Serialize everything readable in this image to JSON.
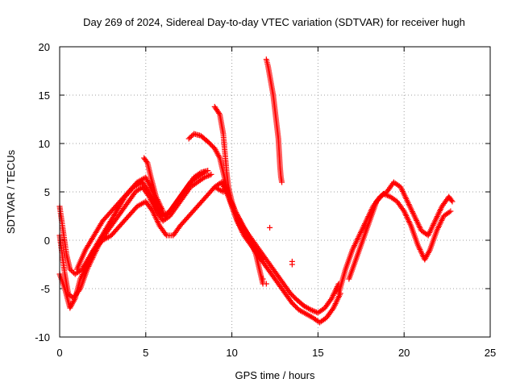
{
  "chart_data": {
    "type": "scatter",
    "title": "Day 269 of 2024, Sidereal Day-to-day VTEC variation (SDTVAR) for receiver hugh",
    "xlabel": "GPS time / hours",
    "ylabel": "SDTVAR / TECUs",
    "xlim": [
      0,
      25
    ],
    "ylim": [
      -10,
      20
    ],
    "xticks": [
      "0",
      "5",
      "10",
      "15",
      "20",
      "25"
    ],
    "yticks": [
      "-10",
      "-5",
      "0",
      "5",
      "10",
      "15",
      "20"
    ],
    "grid": true,
    "marker": "+",
    "color": "#ff0000",
    "series": [
      {
        "name": "track-1",
        "points": [
          [
            0.0,
            3.5
          ],
          [
            0.2,
            1.0
          ],
          [
            0.4,
            -1.5
          ],
          [
            0.6,
            -3.0
          ],
          [
            0.9,
            -3.5
          ],
          [
            1.3,
            -3.0
          ],
          [
            1.8,
            -1.5
          ],
          [
            2.3,
            0.0
          ],
          [
            2.8,
            1.5
          ],
          [
            3.3,
            3.0
          ],
          [
            3.8,
            4.5
          ],
          [
            4.3,
            5.5
          ],
          [
            4.8,
            6.0
          ],
          [
            5.2,
            5.0
          ],
          [
            5.6,
            3.5
          ],
          [
            6.0,
            2.5
          ],
          [
            6.4,
            3.0
          ],
          [
            6.8,
            4.0
          ],
          [
            7.2,
            5.0
          ],
          [
            7.6,
            6.0
          ],
          [
            8.0,
            6.5
          ],
          [
            8.4,
            7.0
          ]
        ]
      },
      {
        "name": "track-2",
        "points": [
          [
            0.0,
            0.5
          ],
          [
            0.3,
            -3.5
          ],
          [
            0.5,
            -5.5
          ],
          [
            0.8,
            -6.0
          ],
          [
            1.2,
            -5.0
          ],
          [
            1.6,
            -3.0
          ],
          [
            2.0,
            -1.5
          ],
          [
            2.4,
            0.0
          ],
          [
            2.8,
            1.0
          ],
          [
            3.2,
            2.0
          ],
          [
            3.6,
            3.0
          ],
          [
            4.0,
            4.0
          ],
          [
            4.4,
            5.0
          ],
          [
            4.8,
            5.5
          ],
          [
            5.2,
            4.5
          ],
          [
            5.6,
            3.0
          ],
          [
            6.0,
            2.0
          ],
          [
            6.4,
            2.5
          ],
          [
            6.8,
            3.5
          ],
          [
            7.2,
            4.5
          ],
          [
            7.6,
            5.5
          ],
          [
            8.0,
            6.0
          ],
          [
            8.4,
            6.5
          ],
          [
            8.8,
            6.8
          ]
        ]
      },
      {
        "name": "track-3",
        "points": [
          [
            0.0,
            -3.5
          ],
          [
            0.3,
            -5.0
          ],
          [
            0.6,
            -7.0
          ],
          [
            0.9,
            -6.0
          ],
          [
            1.2,
            -4.0
          ],
          [
            1.6,
            -2.5
          ],
          [
            2.0,
            -1.0
          ],
          [
            2.5,
            0.0
          ],
          [
            3.0,
            0.5
          ],
          [
            3.5,
            1.5
          ],
          [
            4.0,
            2.5
          ],
          [
            4.5,
            3.5
          ],
          [
            5.0,
            4.0
          ],
          [
            5.4,
            3.0
          ],
          [
            5.8,
            1.5
          ],
          [
            6.2,
            0.5
          ],
          [
            6.6,
            0.5
          ],
          [
            7.0,
            1.5
          ],
          [
            7.5,
            2.5
          ],
          [
            8.0,
            3.5
          ],
          [
            8.5,
            4.5
          ],
          [
            9.0,
            5.5
          ],
          [
            9.5,
            5.0
          ]
        ]
      },
      {
        "name": "track-4",
        "points": [
          [
            1.0,
            -3.0
          ],
          [
            1.5,
            -1.0
          ],
          [
            2.0,
            0.5
          ],
          [
            2.5,
            2.0
          ],
          [
            3.0,
            3.0
          ],
          [
            3.5,
            4.0
          ],
          [
            4.0,
            5.0
          ],
          [
            4.5,
            6.0
          ],
          [
            5.0,
            6.5
          ],
          [
            5.4,
            5.0
          ],
          [
            5.8,
            3.0
          ],
          [
            6.2,
            2.5
          ],
          [
            6.6,
            3.5
          ],
          [
            7.0,
            4.5
          ],
          [
            7.4,
            5.5
          ],
          [
            7.8,
            6.5
          ],
          [
            8.2,
            7.0
          ],
          [
            8.6,
            7.2
          ]
        ]
      },
      {
        "name": "track-5",
        "points": [
          [
            4.9,
            8.5
          ],
          [
            5.1,
            8.0
          ],
          [
            5.3,
            6.5
          ],
          [
            5.6,
            4.5
          ],
          [
            6.0,
            3.0
          ]
        ]
      },
      {
        "name": "track-6",
        "points": [
          [
            7.5,
            10.5
          ],
          [
            7.8,
            11.0
          ],
          [
            8.2,
            10.8
          ],
          [
            8.6,
            10.2
          ],
          [
            9.0,
            9.5
          ],
          [
            9.3,
            8.5
          ],
          [
            9.5,
            7.0
          ],
          [
            9.7,
            5.5
          ],
          [
            9.9,
            4.0
          ],
          [
            10.2,
            2.5
          ],
          [
            10.6,
            1.0
          ],
          [
            11.0,
            0.0
          ],
          [
            11.4,
            -1.0
          ],
          [
            11.8,
            -2.0
          ]
        ]
      },
      {
        "name": "track-7",
        "points": [
          [
            9.0,
            13.8
          ],
          [
            9.3,
            13.0
          ],
          [
            9.5,
            11.0
          ],
          [
            9.6,
            9.0
          ],
          [
            9.7,
            7.0
          ],
          [
            9.8,
            5.5
          ],
          [
            10.0,
            4.0
          ],
          [
            10.2,
            3.0
          ],
          [
            10.5,
            2.0
          ],
          [
            10.8,
            1.0
          ],
          [
            11.1,
            0.0
          ],
          [
            11.4,
            -1.5
          ],
          [
            11.6,
            -3.0
          ],
          [
            11.8,
            -4.5
          ]
        ]
      },
      {
        "name": "track-8",
        "points": [
          [
            9.0,
            5.5
          ],
          [
            9.4,
            6.0
          ],
          [
            9.8,
            4.5
          ],
          [
            10.2,
            3.0
          ],
          [
            10.6,
            1.5
          ],
          [
            11.0,
            0.5
          ],
          [
            11.4,
            -0.5
          ],
          [
            11.8,
            -1.5
          ],
          [
            12.2,
            -2.5
          ],
          [
            12.6,
            -3.5
          ],
          [
            13.0,
            -4.5
          ],
          [
            13.4,
            -5.5
          ],
          [
            13.8,
            -6.2
          ],
          [
            14.2,
            -6.8
          ],
          [
            14.6,
            -7.2
          ],
          [
            15.0,
            -7.5
          ],
          [
            15.4,
            -7.0
          ],
          [
            15.8,
            -6.0
          ],
          [
            16.2,
            -4.5
          ]
        ]
      },
      {
        "name": "track-9",
        "points": [
          [
            9.5,
            6.0
          ],
          [
            9.9,
            4.0
          ],
          [
            10.3,
            2.0
          ],
          [
            10.7,
            0.5
          ],
          [
            11.1,
            -0.5
          ],
          [
            11.5,
            -1.5
          ],
          [
            11.9,
            -2.5
          ],
          [
            12.3,
            -3.5
          ],
          [
            12.7,
            -4.5
          ],
          [
            13.1,
            -5.5
          ],
          [
            13.5,
            -6.5
          ],
          [
            13.9,
            -7.2
          ],
          [
            14.3,
            -7.6
          ],
          [
            14.7,
            -8.0
          ],
          [
            15.1,
            -8.5
          ],
          [
            15.5,
            -8.0
          ],
          [
            15.9,
            -7.0
          ],
          [
            16.3,
            -5.5
          ]
        ]
      },
      {
        "name": "track-10",
        "points": [
          [
            12.0,
            18.7
          ],
          [
            12.1,
            18.0
          ],
          [
            12.2,
            17.0
          ],
          [
            12.3,
            16.0
          ],
          [
            12.4,
            15.0
          ],
          [
            12.5,
            13.5
          ],
          [
            12.6,
            12.0
          ],
          [
            12.7,
            10.5
          ],
          [
            12.75,
            9.0
          ],
          [
            12.8,
            7.5
          ],
          [
            12.85,
            6.5
          ],
          [
            12.9,
            6.0
          ]
        ]
      },
      {
        "name": "track-11",
        "points": [
          [
            16.2,
            -5.5
          ],
          [
            16.6,
            -3.0
          ],
          [
            17.0,
            -1.0
          ],
          [
            17.4,
            0.5
          ],
          [
            17.8,
            2.0
          ],
          [
            18.2,
            3.5
          ],
          [
            18.6,
            4.5
          ],
          [
            19.0,
            5.0
          ],
          [
            19.4,
            6.0
          ],
          [
            19.8,
            5.5
          ],
          [
            20.2,
            4.0
          ],
          [
            20.6,
            2.5
          ],
          [
            21.0,
            1.0
          ],
          [
            21.4,
            0.5
          ],
          [
            21.8,
            2.0
          ],
          [
            22.2,
            3.5
          ],
          [
            22.6,
            4.5
          ],
          [
            22.8,
            4.0
          ]
        ]
      },
      {
        "name": "track-12",
        "points": [
          [
            16.8,
            -4.0
          ],
          [
            17.2,
            -2.0
          ],
          [
            17.6,
            0.0
          ],
          [
            18.0,
            2.0
          ],
          [
            18.4,
            4.0
          ],
          [
            18.8,
            4.8
          ],
          [
            19.2,
            4.5
          ],
          [
            19.6,
            4.0
          ],
          [
            20.0,
            3.0
          ],
          [
            20.4,
            1.5
          ],
          [
            20.8,
            -0.5
          ],
          [
            21.2,
            -2.0
          ],
          [
            21.5,
            -1.0
          ],
          [
            21.9,
            1.0
          ],
          [
            22.3,
            2.5
          ],
          [
            22.7,
            3.0
          ]
        ]
      },
      {
        "name": "isolated",
        "points": [
          [
            11.8,
            -4.0
          ],
          [
            12.0,
            -4.5
          ],
          [
            12.2,
            1.3
          ],
          [
            13.5,
            -2.2
          ],
          [
            13.5,
            -2.5
          ]
        ]
      }
    ]
  }
}
